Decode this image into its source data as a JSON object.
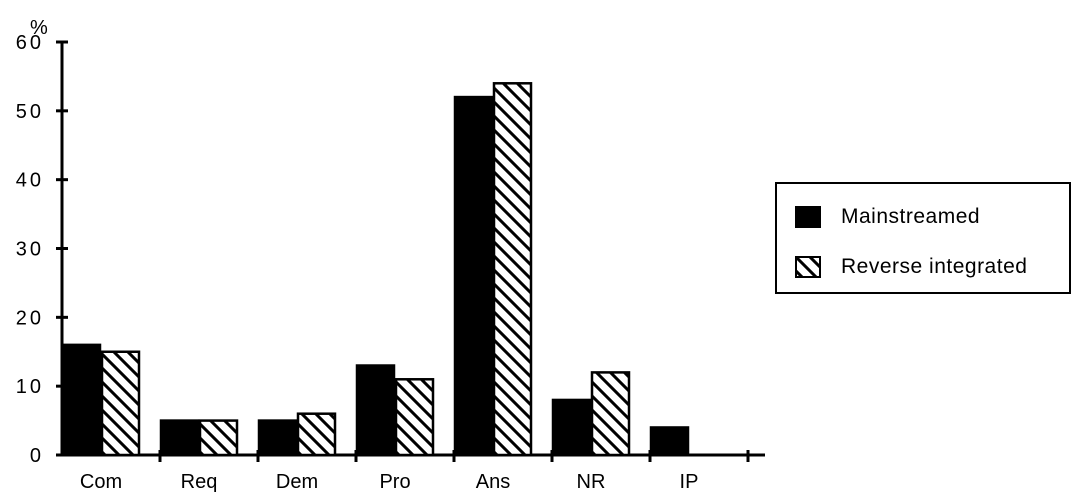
{
  "chart_data": {
    "type": "bar",
    "y_unit_label": "%",
    "categories": [
      "Com",
      "Req",
      "Dem",
      "Pro",
      "Ans",
      "NR",
      "IP"
    ],
    "series": [
      {
        "name": "Mainstreamed",
        "values": [
          16,
          5,
          5,
          13,
          52,
          8,
          4
        ],
        "fill": "#000000"
      },
      {
        "name": "Reverse integrated",
        "values": [
          15,
          5,
          6,
          11,
          54,
          12,
          0
        ],
        "fill": "hatch"
      }
    ],
    "yticks": [
      "0",
      "10",
      "20",
      "30",
      "40",
      "50",
      "60"
    ],
    "ylim": [
      0,
      60
    ],
    "grid": false,
    "legend_position": "right"
  }
}
